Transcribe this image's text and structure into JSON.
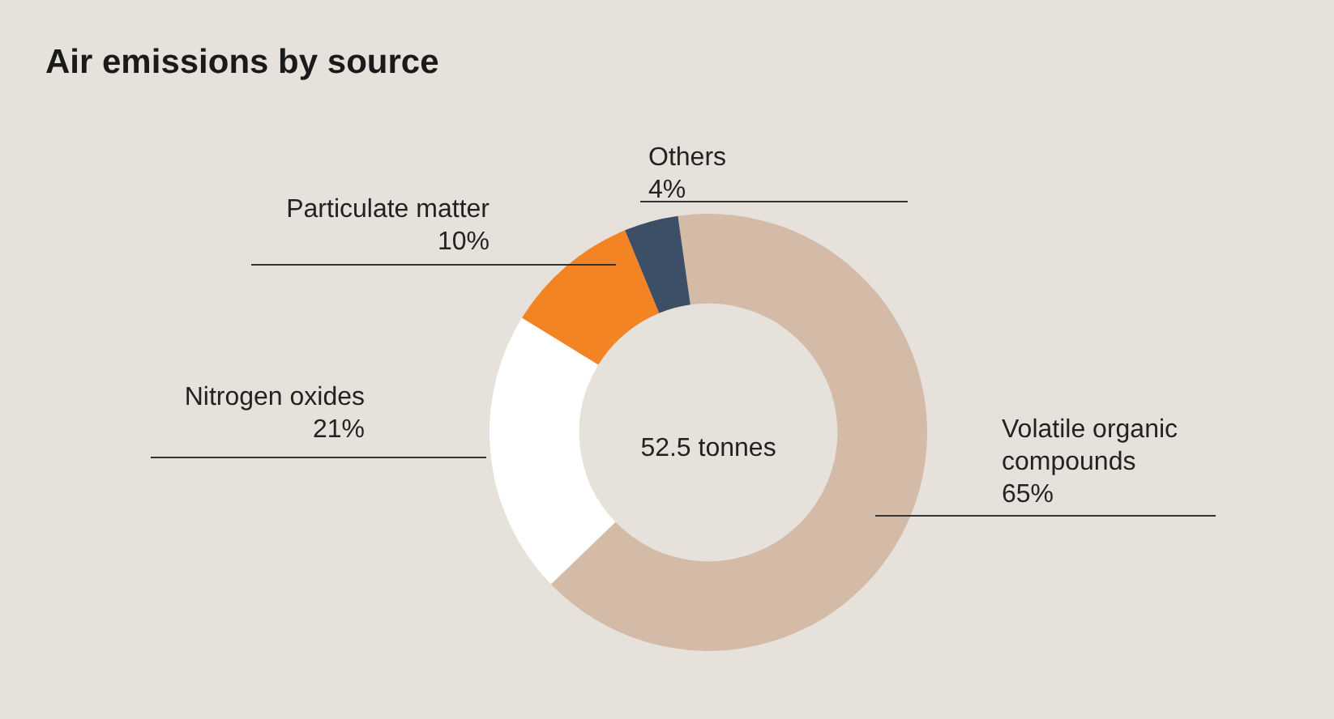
{
  "chart_data": {
    "type": "donut",
    "title": "Air emissions by source",
    "categories": [
      "Volatile organic compounds",
      "Nitrogen oxides",
      "Particulate matter",
      "Others"
    ],
    "values": [
      65,
      21,
      10,
      4
    ],
    "value_labels": [
      "65%",
      "21%",
      "10%",
      "4%"
    ],
    "colors": [
      "#d4bba8",
      "#ffffff",
      "#f28424",
      "#3d4f66"
    ],
    "annotations": [
      "52.5 tonnes"
    ],
    "legend": false
  }
}
